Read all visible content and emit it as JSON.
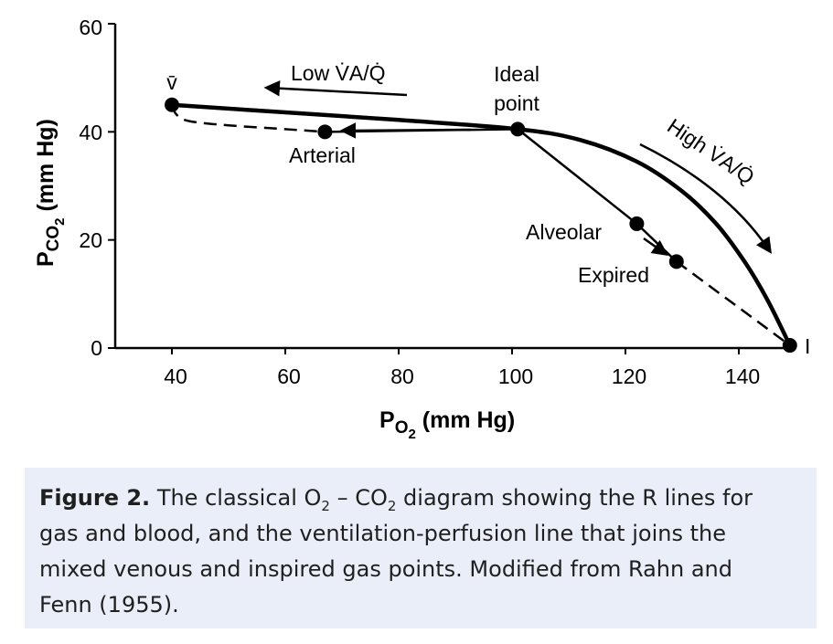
{
  "chart_data": {
    "type": "line",
    "xlim": [
      30,
      150
    ],
    "ylim": [
      0,
      60
    ],
    "x_ticks": [
      40,
      60,
      80,
      100,
      120,
      140
    ],
    "y_ticks": [
      0,
      20,
      40,
      60
    ],
    "x_tick_labels": [
      "40",
      "60",
      "80",
      "100",
      "120",
      "140"
    ],
    "y_tick_labels": [
      "0",
      "20",
      "40",
      "60"
    ],
    "xlabel": {
      "main": "P",
      "sub": "O",
      "sub2": "2",
      "rest": " (mm Hg)"
    },
    "ylabel": {
      "main": "P",
      "sub": "CO",
      "sub2": "2",
      "rest": " (mm Hg)"
    },
    "points": [
      {
        "label": "v̄",
        "x": 40,
        "y": 45
      },
      {
        "label": "Arterial",
        "x": 67,
        "y": 40
      },
      {
        "label": "Ideal point",
        "x": 101,
        "y": 40.5
      },
      {
        "label": "Alveolar",
        "x": 122,
        "y": 23
      },
      {
        "label": "Expired",
        "x": 129,
        "y": 16
      },
      {
        "label": "I",
        "x": 149,
        "y": 0.5
      }
    ],
    "ventilation_perfusion_line": [
      [
        40,
        45
      ],
      [
        60,
        43.6
      ],
      [
        80,
        42.2
      ],
      [
        101,
        40.5
      ],
      [
        112,
        38.5
      ],
      [
        122,
        34.5
      ],
      [
        130,
        29
      ],
      [
        136,
        23
      ],
      [
        141,
        16
      ],
      [
        145,
        9
      ],
      [
        149,
        0.5
      ]
    ],
    "gas_r_line": [
      [
        101,
        40.5
      ],
      [
        122,
        23
      ],
      [
        129,
        16
      ],
      [
        149,
        0.5
      ]
    ],
    "blood_r_line": [
      [
        40,
        45
      ],
      [
        40.8,
        43.2
      ],
      [
        43,
        42
      ],
      [
        50,
        41.2
      ],
      [
        60,
        40.5
      ],
      [
        67,
        40
      ],
      [
        101,
        40.5
      ]
    ],
    "annotations": {
      "low": "Low V̇A/Q̇",
      "high": "High V̇A/Q̇",
      "ideal_line1": "Ideal",
      "ideal_line2": "point",
      "arterial": "Arterial",
      "alveolar": "Alveolar",
      "expired": "Expired",
      "mixed_venous": "v̄",
      "inspired": "I"
    }
  },
  "caption": {
    "label": "Figure 2.",
    "line1_a": "The classical O",
    "line1_sub1": "2",
    "line1_b": " – CO",
    "line1_sub2": "2",
    "line1_c": " diagram showing the R lines for",
    "line2": "gas and blood, and the ventilation-perfusion line that joins the",
    "line3": "mixed venous and inspired gas points. Modified from Rahn and",
    "line4": "Fenn (1955)."
  }
}
